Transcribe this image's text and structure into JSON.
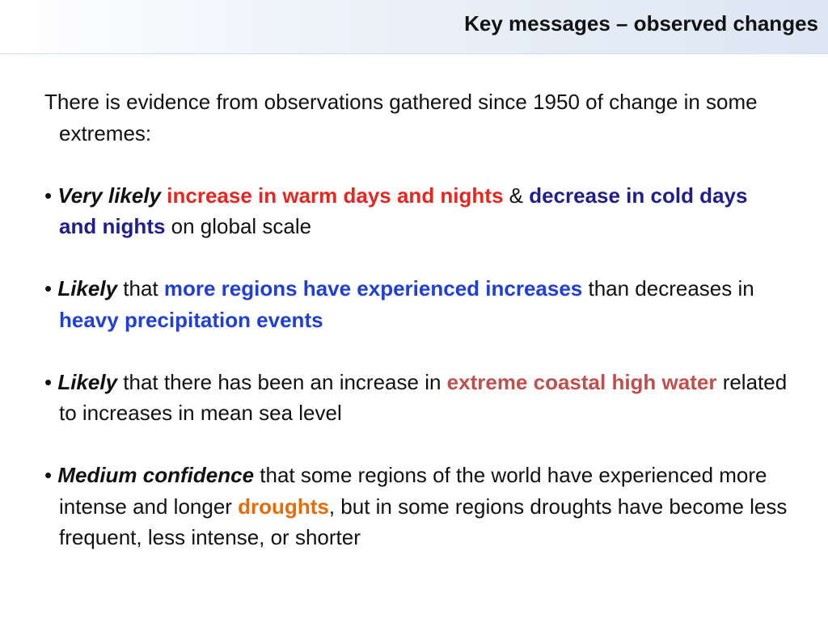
{
  "slide": {
    "title": "Key messages – observed changes",
    "intro": "There is evidence from observations gathered since 1950 of change in some extremes:",
    "bullet_char": "•",
    "bullets": [
      {
        "segments": [
          {
            "text": "Very likely",
            "style": "qualifier"
          },
          {
            "text": " ",
            "style": "plain"
          },
          {
            "text": "increase in warm days and nights",
            "style": "emph",
            "color": "#e8251f"
          },
          {
            "text": " & ",
            "style": "plain"
          },
          {
            "text": "decrease in cold days and nights",
            "style": "emph",
            "color": "#1e1e8c"
          },
          {
            "text": " on global scale",
            "style": "plain"
          }
        ]
      },
      {
        "segments": [
          {
            "text": "Likely",
            "style": "qualifier"
          },
          {
            "text": " that ",
            "style": "plain"
          },
          {
            "text": "more regions have experienced increases",
            "style": "emph",
            "color": "#1f3fd6"
          },
          {
            "text": " than decreases in ",
            "style": "plain"
          },
          {
            "text": "heavy precipitation events",
            "style": "emph",
            "color": "#1f3fd6"
          }
        ]
      },
      {
        "segments": [
          {
            "text": "Likely",
            "style": "qualifier"
          },
          {
            "text": " that there has been an increase in ",
            "style": "plain"
          },
          {
            "text": "extreme coastal high water",
            "style": "emph",
            "color": "#c0504d"
          },
          {
            "text": " related to increases in mean sea level",
            "style": "plain"
          }
        ]
      },
      {
        "segments": [
          {
            "text": "Medium confidence",
            "style": "qualifier"
          },
          {
            "text": " that some regions of the world have experienced more intense and longer ",
            "style": "plain"
          },
          {
            "text": "droughts",
            "style": "emph",
            "color": "#e46c0a"
          },
          {
            "text": ", but in some regions droughts have become less frequent, less intense, or shorter",
            "style": "plain"
          }
        ]
      }
    ]
  }
}
